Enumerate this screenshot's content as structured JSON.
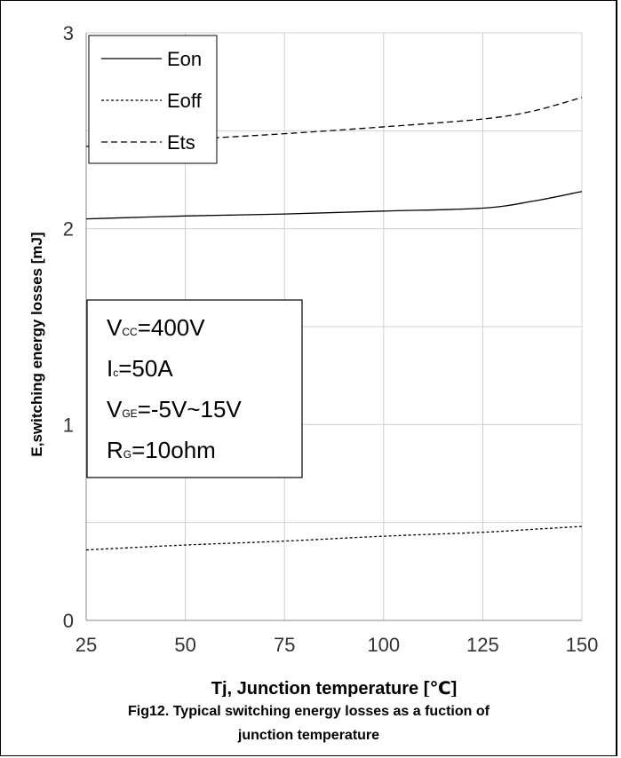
{
  "chart_data": {
    "type": "line",
    "x": [
      25,
      50,
      75,
      100,
      125,
      137.5,
      150
    ],
    "series": [
      {
        "name": "Eon",
        "style": "solid",
        "values": [
          2.05,
          2.065,
          2.075,
          2.09,
          2.105,
          2.14,
          2.19
        ]
      },
      {
        "name": "Eoff",
        "style": "dotted",
        "values": [
          0.36,
          0.385,
          0.405,
          0.43,
          0.45,
          0.465,
          0.48
        ]
      },
      {
        "name": "Ets",
        "style": "dashed",
        "values": [
          2.42,
          2.455,
          2.485,
          2.52,
          2.56,
          2.6,
          2.67
        ]
      }
    ],
    "xlabel": "Tj, Junction temperature [℃]",
    "ylabel": "E,switching energy losses [mJ]",
    "xlim": [
      25,
      150
    ],
    "ylim": [
      0,
      3
    ],
    "xticks": [
      "25",
      "50",
      "75",
      "100",
      "125",
      "150"
    ],
    "yticks": [
      "0",
      "1",
      "2",
      "3"
    ],
    "x_grid_step": 25,
    "y_grid_step": 0.5,
    "grid": true,
    "legend_position": "top-left",
    "line_color": "#000000",
    "grid_color": "#d0d0d0",
    "annotation": [
      {
        "main": "V",
        "sub": "CC",
        "rest": "=400V"
      },
      {
        "main": "I",
        "sub": "c",
        "rest": "=50A"
      },
      {
        "main": "V",
        "sub": "GE",
        "rest": "=-5V~15V"
      },
      {
        "main": "R",
        "sub": "G",
        "rest": "=10ohm"
      }
    ]
  },
  "caption": {
    "line1": "Fig12. Typical switching energy losses as a fuction of",
    "line2": "junction temperature"
  }
}
